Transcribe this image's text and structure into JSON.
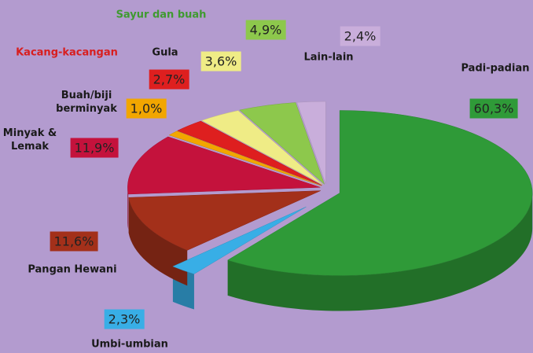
{
  "chart_data": {
    "type": "pie",
    "categories": [
      "Padi-padian",
      "Umbi-umbian",
      "Pangan Hewani",
      "Minyak & Lemak",
      "Buah/biji berminyak",
      "Kacang-kacangan",
      "Gula",
      "Sayur dan buah",
      "Lain-lain"
    ],
    "values": [
      60.3,
      2.3,
      11.6,
      11.9,
      1.0,
      2.7,
      3.6,
      4.9,
      2.4
    ],
    "value_labels": [
      "60,3%",
      "2,3%",
      "11,6%",
      "11,9%",
      "1,0%",
      "2,7%",
      "3,6%",
      "4,9%",
      "2,4%"
    ],
    "colors": [
      "#2f9a38",
      "#38aee6",
      "#a3301a",
      "#c4123c",
      "#f2a600",
      "#de1f1f",
      "#efec86",
      "#8dc84c",
      "#c9aedb"
    ],
    "label_colors": [
      "#1a1a1a",
      "#1a1a1a",
      "#1a1a1a",
      "#1a1a1a",
      "#1a1a1a",
      "#d81e1e",
      "#1a1a1a",
      "#3f9a30",
      "#1a1a1a"
    ]
  }
}
